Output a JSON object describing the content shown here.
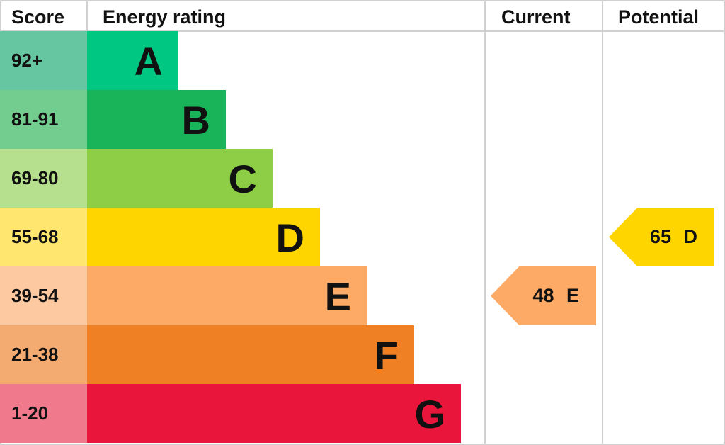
{
  "chart_data": {
    "type": "table",
    "headers": {
      "score": "Score",
      "rating": "Energy rating",
      "current": "Current",
      "potential": "Potential"
    },
    "bands": [
      {
        "letter": "A",
        "range": "92+",
        "color": "#00c781",
        "score_color": "#67c6a2"
      },
      {
        "letter": "B",
        "range": "81-91",
        "color": "#19b459",
        "score_color": "#72cd8f"
      },
      {
        "letter": "C",
        "range": "69-80",
        "color": "#8dce46",
        "score_color": "#b7e08e"
      },
      {
        "letter": "D",
        "range": "55-68",
        "color": "#ffd500",
        "score_color": "#ffe66e"
      },
      {
        "letter": "E",
        "range": "39-54",
        "color": "#fcaa65",
        "score_color": "#fdc9a0"
      },
      {
        "letter": "F",
        "range": "21-38",
        "color": "#ef8023",
        "score_color": "#f4ab72"
      },
      {
        "letter": "G",
        "range": "1-20",
        "color": "#e9153b",
        "score_color": "#f07a8c"
      }
    ],
    "current": {
      "value": 48,
      "band": "E",
      "label": "48 E",
      "color": "#fcaa65"
    },
    "potential": {
      "value": 65,
      "band": "D",
      "label": "65 D",
      "color": "#ffd500"
    }
  }
}
